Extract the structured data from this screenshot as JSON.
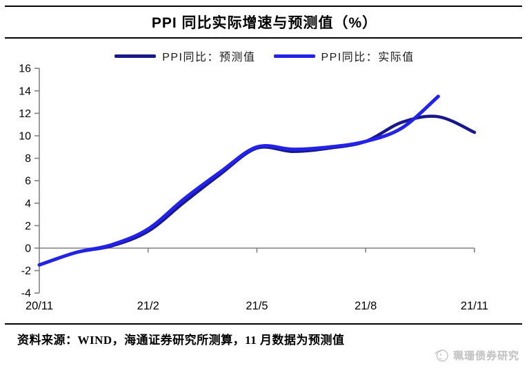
{
  "title": "PPI 同比实际增速与预测值（%）",
  "legend": {
    "items": [
      {
        "label": "PPI同比：预测值",
        "color": "#18188a"
      },
      {
        "label": "PPI同比：实际值",
        "color": "#2222e8"
      }
    ]
  },
  "footer": {
    "text": "资料来源：WIND，海通证券研究所测算，11 月数据为预测值"
  },
  "watermark": {
    "icon": "mascot-face-icon",
    "text": "珮珊债券研究"
  },
  "colors": {
    "axis": "#808080",
    "forecast_line": "#18188a",
    "actual_line": "#2222e8",
    "text": "#000000"
  },
  "chart_data": {
    "type": "line",
    "title": "PPI 同比实际增速与预测值（%）",
    "x": [
      "20/11",
      "20/12",
      "21/1",
      "21/2",
      "21/3",
      "21/4",
      "21/5",
      "21/6",
      "21/7",
      "21/8",
      "21/9",
      "21/10",
      "21/11"
    ],
    "x_tick_labels": [
      "20/11",
      "21/2",
      "21/5",
      "21/8",
      "21/11"
    ],
    "x_tick_month_positions": [
      0,
      3,
      6,
      9,
      12
    ],
    "ylim": [
      -4,
      16
    ],
    "y_ticks": [
      16,
      14,
      12,
      10,
      8,
      6,
      4,
      2,
      0,
      -2,
      -4
    ],
    "grid": "zero-line-only",
    "legend_position": "top",
    "series": [
      {
        "name": "PPI同比：预测值",
        "color": "#18188a",
        "width": 4.5,
        "values": [
          -1.5,
          -0.4,
          0.2,
          1.5,
          4.1,
          6.6,
          8.9,
          8.6,
          8.9,
          9.5,
          11.2,
          11.7,
          10.3
        ]
      },
      {
        "name": "PPI同比：实际值",
        "color": "#2222e8",
        "width": 5,
        "values": [
          -1.5,
          -0.4,
          0.3,
          1.7,
          4.4,
          6.8,
          9.0,
          8.8,
          9.0,
          9.5,
          10.7,
          13.5,
          null
        ]
      }
    ]
  }
}
